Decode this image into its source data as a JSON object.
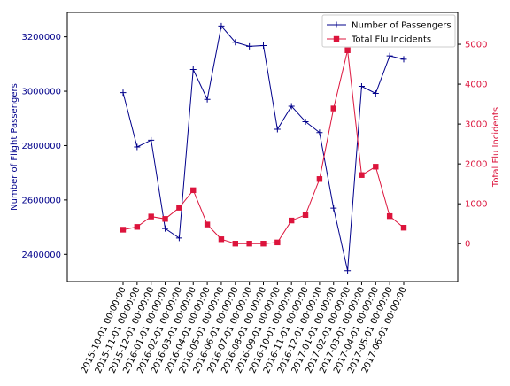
{
  "chart_data": {
    "type": "line",
    "x_categories": [
      "2015-10-01 00:00:00",
      "2015-11-01 00:00:00",
      "2015-12-01 00:00:00",
      "2016-01-01 00:00:00",
      "2016-02-01 00:00:00",
      "2016-03-01 00:00:00",
      "2016-04-01 00:00:00",
      "2016-05-01 00:00:00",
      "2016-06-01 00:00:00",
      "2016-07-01 00:00:00",
      "2016-08-01 00:00:00",
      "2016-09-01 00:00:00",
      "2016-10-01 00:00:00",
      "2016-11-01 00:00:00",
      "2016-12-01 00:00:00",
      "2017-01-01 00:00:00",
      "2017-02-01 00:00:00",
      "2017-03-01 00:00:00",
      "2017-04-01 00:00:00",
      "2017-05-01 00:00:00",
      "2017-06-01 00:00:00"
    ],
    "left_axis": {
      "label": "Number of Flight Passengers",
      "color": "#00008b",
      "ylim": [
        2300000,
        3290000
      ],
      "ticks": [
        2400000,
        2600000,
        2800000,
        3000000,
        3200000
      ],
      "tick_labels": [
        "2400000",
        "2600000",
        "2800000",
        "3000000",
        "3200000"
      ]
    },
    "right_axis": {
      "label": "Total Flu Incidents",
      "color": "#dc143c",
      "ylim": [
        -950,
        5800
      ],
      "ticks": [
        0,
        1000,
        2000,
        3000,
        4000,
        5000
      ],
      "tick_labels": [
        "0",
        "1000",
        "2000",
        "3000",
        "4000",
        "5000"
      ]
    },
    "series": [
      {
        "name": "Number of Passengers",
        "axis": "left",
        "color": "#00008b",
        "marker": "plus",
        "values": [
          2995000,
          2795000,
          2820000,
          2495000,
          2460000,
          3080000,
          2970000,
          3240000,
          3180000,
          3165000,
          3168000,
          2860000,
          2945000,
          2888000,
          2848000,
          2570000,
          2340000,
          3018000,
          2992000,
          3130000,
          3118000
        ]
      },
      {
        "name": "Total Flu Incidents",
        "axis": "right",
        "color": "#dc143c",
        "marker": "square",
        "values": [
          350,
          420,
          680,
          620,
          900,
          1340,
          480,
          110,
          0,
          0,
          0,
          30,
          580,
          720,
          1620,
          3390,
          4850,
          1720,
          1930,
          690,
          400
        ]
      }
    ],
    "legend": {
      "position": "top-right",
      "entries": [
        "Number of Passengers",
        "Total Flu Incidents"
      ]
    },
    "grid": false
  }
}
